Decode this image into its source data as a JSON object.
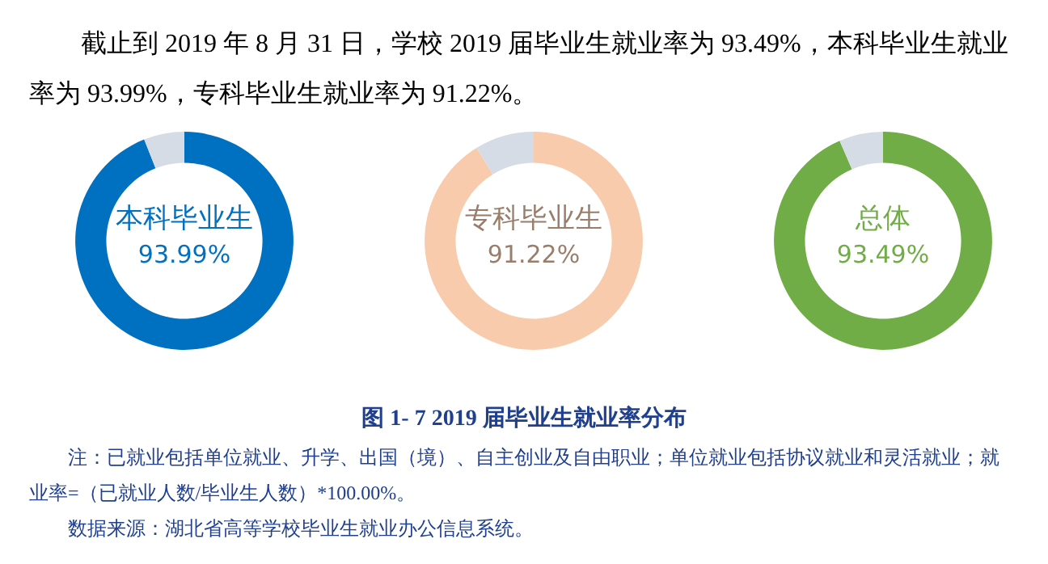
{
  "chart_data": [
    {
      "type": "other",
      "annotations": [
        "截止到 2019 年 8 月 31 日，学校 2019 届毕业生就业率为 93.49%，本科毕业生就业率为 93.99%，专科毕业生就业率为 91.22%。"
      ]
    },
    {
      "type": "donut",
      "title": "本科毕业生",
      "categories": [
        null,
        null
      ],
      "values": [
        93.99,
        6.01
      ],
      "value_labels": [
        "93.99%",
        null
      ],
      "colors": [
        "#0070c0",
        "#d6dce5"
      ]
    },
    {
      "type": "donut",
      "title": "专科毕业生",
      "categories": [
        null,
        null
      ],
      "values": [
        91.22,
        8.78
      ],
      "value_labels": [
        "91.22%",
        null
      ],
      "colors": [
        "#f8cbad",
        "#d6dce5"
      ]
    },
    {
      "type": "donut",
      "title": "总体",
      "categories": [
        null,
        null
      ],
      "values": [
        93.49,
        6.51
      ],
      "value_labels": [
        "93.49%",
        null
      ],
      "colors": [
        "#70ad47",
        "#d6dce5"
      ]
    },
    {
      "type": "other",
      "title": "图 1- 7    2019 届毕业生就业率分布",
      "annotations": [
        "注：已就业包括单位就业、升学、出国（境）、自主创业及自由职业；单位就业包括协议就业和灵活就业；就业率=（已就业人数/毕业生人数）*100.00%。",
        "数据来源：湖北省高等学校毕业生就业办公信息系统。"
      ]
    }
  ]
}
